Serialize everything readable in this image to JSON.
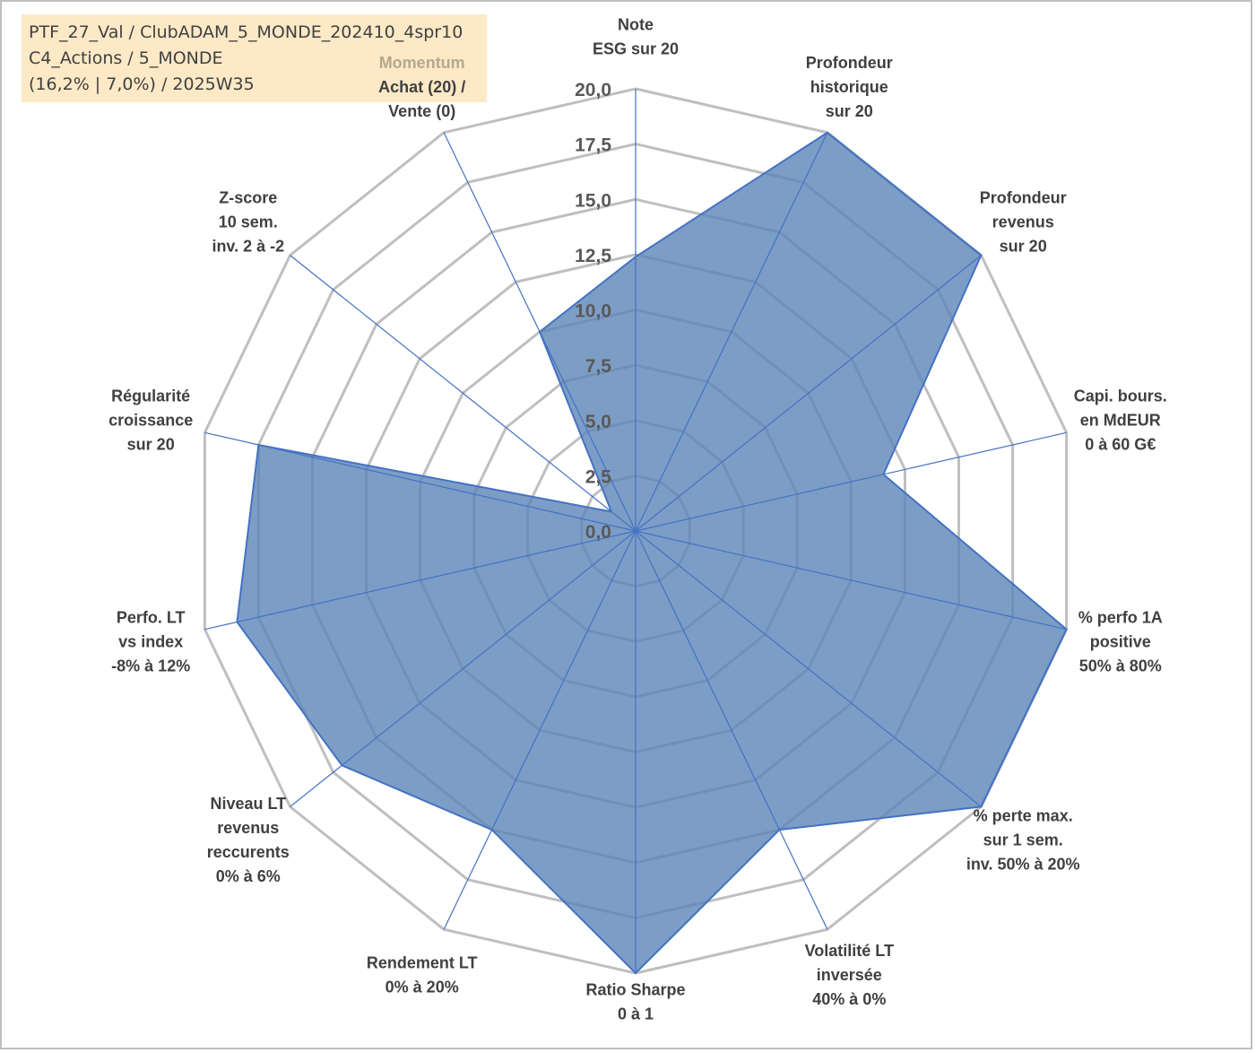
{
  "header": {
    "line1": "PTF_27_Val / ClubADAM_5_MONDE_202410_4spr10",
    "line2": "C4_Actions / 5_MONDE",
    "line3": "(16,2% | 7,0%) / 2025W35"
  },
  "colors": {
    "area_fill": "#5b85b6",
    "area_stroke": "#4472c4",
    "spoke": "#4472c4",
    "grid": "#bfbfbf",
    "title_bg": "#fde9c6",
    "momentum_label": "#b4a890"
  },
  "chart_data": {
    "type": "radar",
    "scale": {
      "min": 0,
      "max": 20,
      "step": 2.5
    },
    "tick_labels": [
      "0,0",
      "2,5",
      "5,0",
      "7,5",
      "10,0",
      "12,5",
      "15,0",
      "17,5",
      "20,0"
    ],
    "axes": [
      {
        "label": [
          "Note",
          "ESG sur 20"
        ],
        "value": 12.4
      },
      {
        "label": [
          "Profondeur",
          "historique",
          "sur 20"
        ],
        "value": 20
      },
      {
        "label": [
          "Profondeur",
          "revenus",
          "sur 20"
        ],
        "value": 20
      },
      {
        "label": [
          "Capi. bours.",
          "en MdEUR",
          "0 à 60 G€"
        ],
        "value": 11.5
      },
      {
        "label": [
          "% perfo 1A",
          "positive",
          "50% à 80%"
        ],
        "value": 20
      },
      {
        "label": [
          "% perte max.",
          "sur 1 sem.",
          "inv. 50% à 20%"
        ],
        "value": 20
      },
      {
        "label": [
          "Volatilité LT",
          "inversée",
          "40% à 0%"
        ],
        "value": 15
      },
      {
        "label": [
          "Ratio Sharpe",
          "0 à 1"
        ],
        "value": 20
      },
      {
        "label": [
          "Rendement LT",
          "0% à 20%"
        ],
        "value": 15
      },
      {
        "label": [
          "Niveau LT",
          "revenus",
          "reccurents",
          "0% à 6%"
        ],
        "value": 17
      },
      {
        "label": [
          "Perfo. LT",
          "vs index",
          "-8% à 12%"
        ],
        "value": 18.5
      },
      {
        "label": [
          "Régularité",
          "croissance",
          "sur 20"
        ],
        "value": 17.5
      },
      {
        "label": [
          "Z-score",
          "10 sem.",
          "inv. 2 à -2"
        ],
        "value": 1.4
      },
      {
        "label": [
          "Momentum",
          "Achat (20) /",
          "Vente (0)"
        ],
        "value": 10
      }
    ]
  }
}
